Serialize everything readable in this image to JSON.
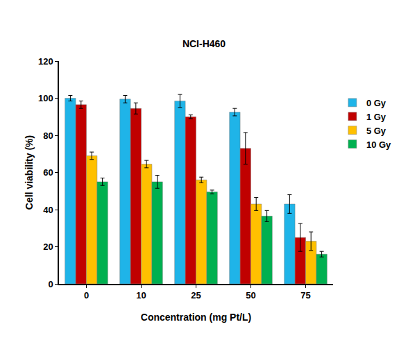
{
  "chart_data": {
    "type": "bar",
    "title": "NCI-H460",
    "x_label": "Concentration (mg Pt/L)",
    "y_label": "Cell viability (%)",
    "categories": [
      "0",
      "10",
      "25",
      "50",
      "75"
    ],
    "series": [
      {
        "name": "0 Gy",
        "color": "#1fb4e8",
        "values": [
          100,
          99.5,
          98.5,
          92.5,
          43
        ],
        "errors": [
          1.5,
          2,
          3.5,
          2,
          5
        ]
      },
      {
        "name": "1 Gy",
        "color": "#c00000",
        "values": [
          96.5,
          94.5,
          90,
          73,
          25
        ],
        "errors": [
          2,
          3,
          1,
          8.5,
          7.5
        ]
      },
      {
        "name": "5 Gy",
        "color": "#ffc000",
        "values": [
          69,
          64.5,
          56,
          43,
          23
        ],
        "errors": [
          2,
          2,
          1.5,
          3.5,
          5
        ]
      },
      {
        "name": "10 Gy",
        "color": "#00b050",
        "values": [
          55,
          55,
          49.5,
          36.5,
          16
        ],
        "errors": [
          2,
          3.5,
          1,
          3,
          1.5
        ]
      }
    ],
    "ylim": [
      0,
      120
    ],
    "yticks": [
      0,
      20,
      40,
      60,
      80,
      100,
      120
    ],
    "grid": false,
    "legend": "right"
  }
}
